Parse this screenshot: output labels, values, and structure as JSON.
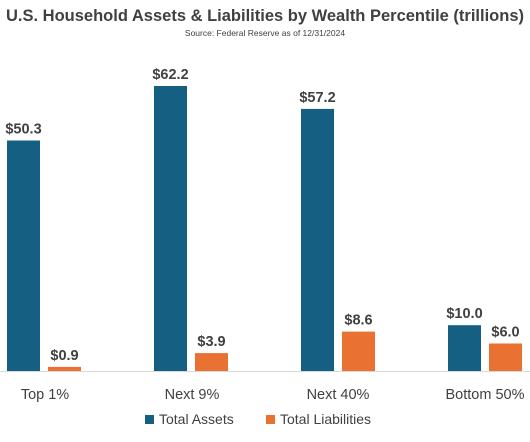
{
  "chart_data": {
    "type": "bar",
    "title": "U.S. Household Assets & Liabilities by Wealth Percentile (trillions)",
    "subtitle": "Source: Federal Reserve as of 12/31/2024",
    "categories": [
      "Top 1%",
      "Next 9%",
      "Next 40%",
      "Bottom 50%"
    ],
    "series": [
      {
        "name": "Total Assets",
        "values": [
          50.3,
          62.2,
          57.2,
          10.0
        ],
        "color": "#156082"
      },
      {
        "name": "Total Liabilities",
        "values": [
          0.9,
          3.9,
          8.6,
          6.0
        ],
        "color": "#E97132"
      }
    ],
    "data_labels": [
      [
        "$50.3",
        "$62.2",
        "$57.2",
        "$10.0"
      ],
      [
        "$0.9",
        "$3.9",
        "$8.6",
        "$6.0"
      ]
    ],
    "ylim": [
      0,
      65
    ],
    "grid": false,
    "y_axis_visible": false,
    "legend_position": "bottom"
  }
}
